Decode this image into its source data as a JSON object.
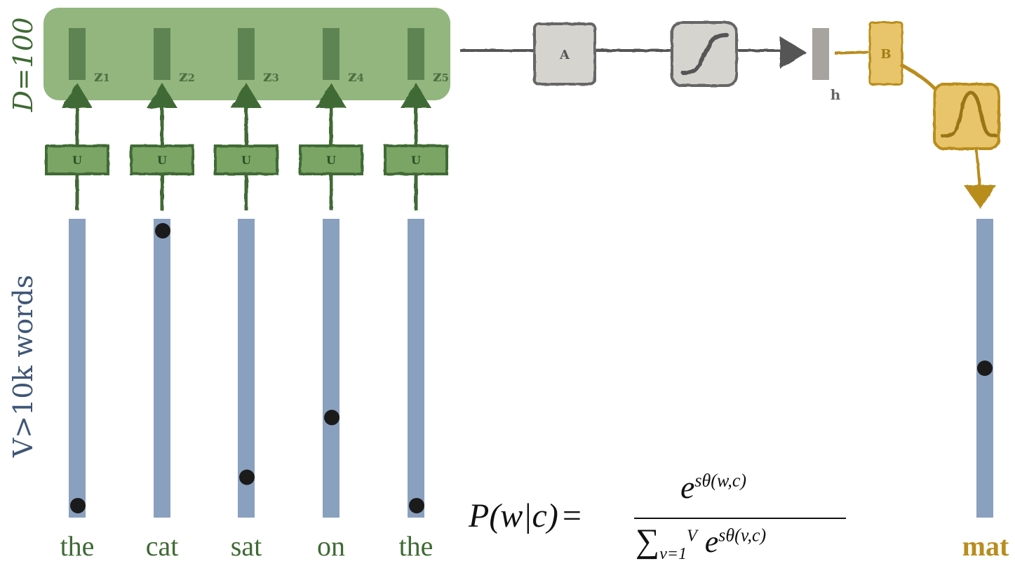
{
  "labels": {
    "d_label": "D=100",
    "v_label": "V>10k words",
    "h_label": "h",
    "a_label": "A",
    "b_label": "B",
    "u_label": "U"
  },
  "inputs": [
    {
      "word": "the",
      "z": "z",
      "sub": "1",
      "dot": 0.96
    },
    {
      "word": "cat",
      "z": "z",
      "sub": "2",
      "dot": 0.04
    },
    {
      "word": "sat",
      "z": "z",
      "sub": "3",
      "dot": 0.865
    },
    {
      "word": "on",
      "z": "z",
      "sub": "4",
      "dot": 0.665
    },
    {
      "word": "the",
      "z": "z",
      "sub": "5",
      "dot": 0.96
    }
  ],
  "output": {
    "word": "mat",
    "dot": 0.5
  },
  "formula": {
    "lhs": "P(w|c)",
    "eq": "=",
    "num_base": "e",
    "num_exp": "sθ(w,c)",
    "den_sum": "∑",
    "den_lower": "v=1",
    "den_upper": "V",
    "den_base": "e",
    "den_exp": "sθ(v,c)"
  },
  "colors": {
    "green_panel": "#93b67f",
    "green_dark": "#3f6a34",
    "green_box": "#7aa565",
    "blue_bar": "#8aa0bf",
    "blue_text": "#3f5676",
    "gray_box": "#d6d4cf",
    "gray_line": "#555555",
    "gold": "#b98d1e",
    "gold_box": "#e8c56a",
    "dot": "#1b1b1b"
  }
}
